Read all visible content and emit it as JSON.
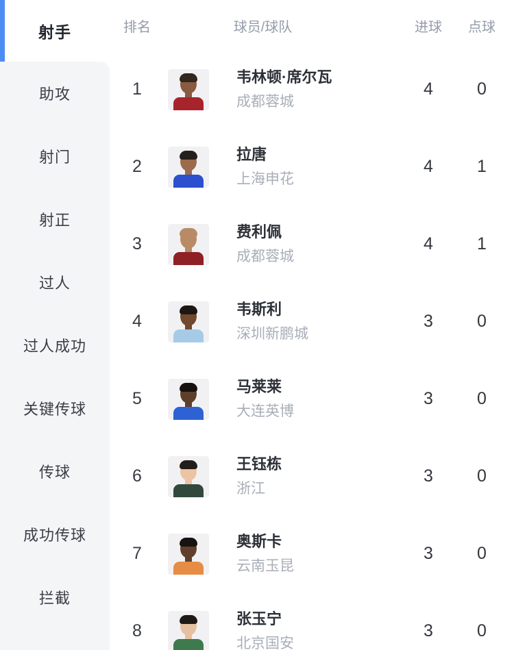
{
  "colors": {
    "accent_blue": "#4b8df2",
    "sidebar_bg": "#f4f5f7",
    "muted_text": "#949baa",
    "dark_text": "#2c3037"
  },
  "sidebar": {
    "items": [
      {
        "key": "top-scorers",
        "label": "射手",
        "active": true
      },
      {
        "key": "assists",
        "label": "助攻",
        "active": false
      },
      {
        "key": "shots",
        "label": "射门",
        "active": false
      },
      {
        "key": "shots-on-target",
        "label": "射正",
        "active": false
      },
      {
        "key": "dribbles",
        "label": "过人",
        "active": false
      },
      {
        "key": "successful-dribbles",
        "label": "过人成功",
        "active": false
      },
      {
        "key": "key-passes",
        "label": "关键传球",
        "active": false
      },
      {
        "key": "passes",
        "label": "传球",
        "active": false
      },
      {
        "key": "successful-passes",
        "label": "成功传球",
        "active": false
      },
      {
        "key": "interceptions",
        "label": "拦截",
        "active": false
      }
    ]
  },
  "table": {
    "headers": {
      "rank": "排名",
      "player": "球员/球队",
      "goals": "进球",
      "penalties": "点球"
    },
    "rows": [
      {
        "rank": "1",
        "player": "韦林顿·席尔瓦",
        "team": "成都蓉城",
        "goals": "4",
        "penalties": "0",
        "avatar": {
          "skin": "#8b5a42",
          "hair": "#30271f",
          "jersey": "#a8242c"
        }
      },
      {
        "rank": "2",
        "player": "拉唐",
        "team": "上海申花",
        "goals": "4",
        "penalties": "1",
        "avatar": {
          "skin": "#9c6b4c",
          "hair": "#26201b",
          "jersey": "#2c50cf"
        }
      },
      {
        "rank": "3",
        "player": "费利佩",
        "team": "成都蓉城",
        "goals": "4",
        "penalties": "1",
        "avatar": {
          "skin": "#b88a66",
          "hair": "#b88a66",
          "jersey": "#8f2026"
        }
      },
      {
        "rank": "4",
        "player": "韦斯利",
        "team": "深圳新鹏城",
        "goals": "3",
        "penalties": "0",
        "avatar": {
          "skin": "#70492f",
          "hair": "#1d1713",
          "jersey": "#a6cbe6"
        }
      },
      {
        "rank": "5",
        "player": "马莱莱",
        "team": "大连英博",
        "goals": "3",
        "penalties": "0",
        "avatar": {
          "skin": "#5f3f2b",
          "hair": "#171210",
          "jersey": "#2e62d4"
        }
      },
      {
        "rank": "6",
        "player": "王钰栋",
        "team": "浙江",
        "goals": "3",
        "penalties": "0",
        "avatar": {
          "skin": "#eac4a3",
          "hair": "#231d1a",
          "jersey": "#31493c"
        }
      },
      {
        "rank": "7",
        "player": "奥斯卡",
        "team": "云南玉昆",
        "goals": "3",
        "penalties": "0",
        "avatar": {
          "skin": "#60402c",
          "hair": "#171311",
          "jersey": "#e78c44"
        }
      },
      {
        "rank": "8",
        "player": "张玉宁",
        "team": "北京国安",
        "goals": "3",
        "penalties": "0",
        "avatar": {
          "skin": "#e6c0a0",
          "hair": "#201a17",
          "jersey": "#3f7a4e"
        }
      }
    ]
  }
}
